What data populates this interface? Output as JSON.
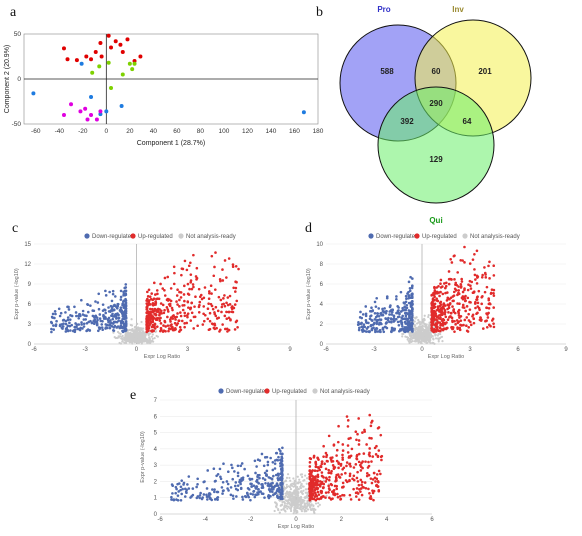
{
  "panel_labels": {
    "a": "a",
    "b": "b",
    "c": "c",
    "d": "d",
    "e": "e"
  },
  "chart_data": [
    {
      "id": "a",
      "type": "scatter",
      "xlabel": "Component 1 (28.7%)",
      "ylabel": "Component 2 (20.9%)",
      "xlim": [
        -70,
        180
      ],
      "ylim": [
        -50,
        50
      ],
      "xticks": [
        -60,
        -40,
        -20,
        0,
        20,
        40,
        60,
        80,
        100,
        120,
        140,
        160,
        180
      ],
      "yticks": [
        -50,
        0,
        50
      ],
      "points": [
        {
          "x": -36,
          "y": 34,
          "c": "#e00000"
        },
        {
          "x": -33,
          "y": 22,
          "c": "#e00000"
        },
        {
          "x": -25,
          "y": 21,
          "c": "#e00000"
        },
        {
          "x": -17,
          "y": 25,
          "c": "#e00000"
        },
        {
          "x": -13,
          "y": 22,
          "c": "#e00000"
        },
        {
          "x": -9,
          "y": 30,
          "c": "#e00000"
        },
        {
          "x": -5,
          "y": 40,
          "c": "#e00000"
        },
        {
          "x": -4,
          "y": 25,
          "c": "#e00000"
        },
        {
          "x": 2,
          "y": 48,
          "c": "#e00000"
        },
        {
          "x": 4,
          "y": 35,
          "c": "#e00000"
        },
        {
          "x": 8,
          "y": 42,
          "c": "#e00000"
        },
        {
          "x": 12,
          "y": 38,
          "c": "#e00000"
        },
        {
          "x": 14,
          "y": 30,
          "c": "#e00000"
        },
        {
          "x": 18,
          "y": 44,
          "c": "#e00000"
        },
        {
          "x": 24,
          "y": 20,
          "c": "#e00000"
        },
        {
          "x": 29,
          "y": 25,
          "c": "#e00000"
        },
        {
          "x": -12,
          "y": 7,
          "c": "#7ed100"
        },
        {
          "x": -6,
          "y": 14,
          "c": "#7ed100"
        },
        {
          "x": 2,
          "y": 18,
          "c": "#7ed100"
        },
        {
          "x": 4,
          "y": -10,
          "c": "#7ed100"
        },
        {
          "x": 14,
          "y": 5,
          "c": "#7ed100"
        },
        {
          "x": 20,
          "y": 17,
          "c": "#7ed100"
        },
        {
          "x": 22,
          "y": 11,
          "c": "#7ed100"
        },
        {
          "x": 24,
          "y": 17,
          "c": "#7ed100"
        },
        {
          "x": -62,
          "y": -16,
          "c": "#1e7be0"
        },
        {
          "x": -21,
          "y": 17,
          "c": "#1e7be0"
        },
        {
          "x": -13,
          "y": -20,
          "c": "#1e7be0"
        },
        {
          "x": -5,
          "y": -39,
          "c": "#1e7be0"
        },
        {
          "x": 0,
          "y": -36,
          "c": "#1e7be0"
        },
        {
          "x": 13,
          "y": -30,
          "c": "#1e7be0"
        },
        {
          "x": 168,
          "y": -37,
          "c": "#1e7be0"
        },
        {
          "x": -36,
          "y": -40,
          "c": "#e000e0"
        },
        {
          "x": -30,
          "y": -28,
          "c": "#e000e0"
        },
        {
          "x": -22,
          "y": -36,
          "c": "#e000e0"
        },
        {
          "x": -18,
          "y": -33,
          "c": "#e000e0"
        },
        {
          "x": -16,
          "y": -45,
          "c": "#e000e0"
        },
        {
          "x": -13,
          "y": -40,
          "c": "#e000e0"
        },
        {
          "x": -8,
          "y": -45,
          "c": "#e000e0"
        },
        {
          "x": -5,
          "y": -36,
          "c": "#e000e0"
        }
      ]
    },
    {
      "id": "b",
      "type": "venn",
      "sets": [
        {
          "name": "Pro",
          "color": "#5555ee",
          "label_color": "#3030c8"
        },
        {
          "name": "Inv",
          "color": "#f4f04e",
          "label_color": "#9a8a30"
        },
        {
          "name": "Qui",
          "color": "#6aee6a",
          "label_color": "#1a9a1a"
        }
      ],
      "regions": {
        "pro_only": "588",
        "pro_inv": "60",
        "inv_only": "201",
        "all": "290",
        "pro_qui": "392",
        "inv_qui": "64",
        "qui_only": "129"
      }
    },
    {
      "id": "c",
      "type": "scatter",
      "legend": [
        "Down-regulated",
        "Up-regulated",
        "Not analysis-ready"
      ],
      "legend_colors": [
        "#4f6bb0",
        "#e12b2b",
        "#cccccc"
      ],
      "xlabel": "Expr Log Ratio",
      "ylabel": "Expr p-value (-log10)",
      "xlim": [
        -6,
        9
      ],
      "ylim": [
        0,
        15
      ],
      "xticks": [
        -6,
        -3,
        0,
        3,
        6,
        9
      ],
      "yticks": [
        0,
        3,
        6,
        9,
        12,
        15
      ],
      "down_spread_x": [
        -5,
        -0.6
      ],
      "up_spread_x": [
        0.6,
        6
      ],
      "peak_y": 13.5
    },
    {
      "id": "d",
      "type": "scatter",
      "legend": [
        "Down-regulated",
        "Up-regulated",
        "Not analysis-ready"
      ],
      "legend_colors": [
        "#4f6bb0",
        "#e12b2b",
        "#cccccc"
      ],
      "xlabel": "Expr Log Ratio",
      "ylabel": "Expr p-value (-log10)",
      "xlim": [
        -6,
        9
      ],
      "ylim": [
        0,
        10
      ],
      "xticks": [
        -6,
        -3,
        0,
        3,
        6,
        9
      ],
      "yticks": [
        0,
        2,
        4,
        6,
        8,
        10
      ],
      "down_spread_x": [
        -4,
        -0.6
      ],
      "up_spread_x": [
        0.6,
        4.5
      ],
      "peak_y": 9.5
    },
    {
      "id": "e",
      "type": "scatter",
      "legend": [
        "Down-regulated",
        "Up-regulated",
        "Not analysis-ready"
      ],
      "legend_colors": [
        "#4f6bb0",
        "#e12b2b",
        "#cccccc"
      ],
      "xlabel": "Expr Log Ratio",
      "ylabel": "Expr p-value (-log10)",
      "xlim": [
        -6,
        6
      ],
      "ylim": [
        0,
        7
      ],
      "xticks": [
        -6,
        -4,
        -2,
        0,
        2,
        4,
        6
      ],
      "yticks": [
        0,
        1,
        2,
        3,
        4,
        5,
        6,
        7
      ],
      "down_spread_x": [
        -5.5,
        -0.6
      ],
      "up_spread_x": [
        0.6,
        3.8
      ],
      "peak_y": 6
    }
  ]
}
